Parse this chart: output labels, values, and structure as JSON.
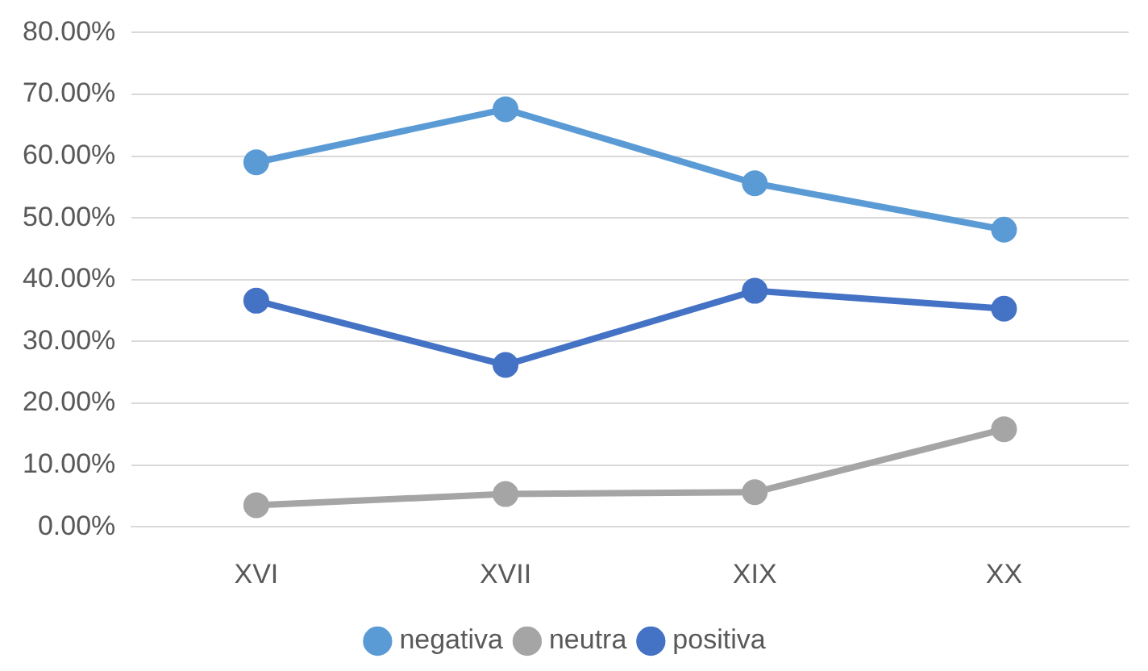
{
  "chart_data": {
    "type": "line",
    "categories": [
      "XVI",
      "XVII",
      "XIX",
      "XX"
    ],
    "series": [
      {
        "name": "negativa",
        "color": "#5b9bd5",
        "values": [
          59,
          67.6,
          55.6,
          48.1
        ]
      },
      {
        "name": "neutra",
        "color": "#a5a5a5",
        "values": [
          3.5,
          5.3,
          5.6,
          15.8
        ]
      },
      {
        "name": "positiva",
        "color": "#4472c4",
        "values": [
          36.6,
          26.2,
          38.2,
          35.3
        ]
      }
    ],
    "ylim": [
      0,
      80
    ],
    "yticks": [
      {
        "value": 0,
        "label": "0.00%"
      },
      {
        "value": 10,
        "label": "10.00%"
      },
      {
        "value": 20,
        "label": "20.00%"
      },
      {
        "value": 30,
        "label": "30.00%"
      },
      {
        "value": 40,
        "label": "40.00%"
      },
      {
        "value": 50,
        "label": "50.00%"
      },
      {
        "value": 60,
        "label": "60.00%"
      },
      {
        "value": 70,
        "label": "70.00%"
      },
      {
        "value": 80,
        "label": "80.00%"
      }
    ],
    "grid": "y",
    "legend": "bottom",
    "marker": "circle",
    "line_style": "solid"
  }
}
